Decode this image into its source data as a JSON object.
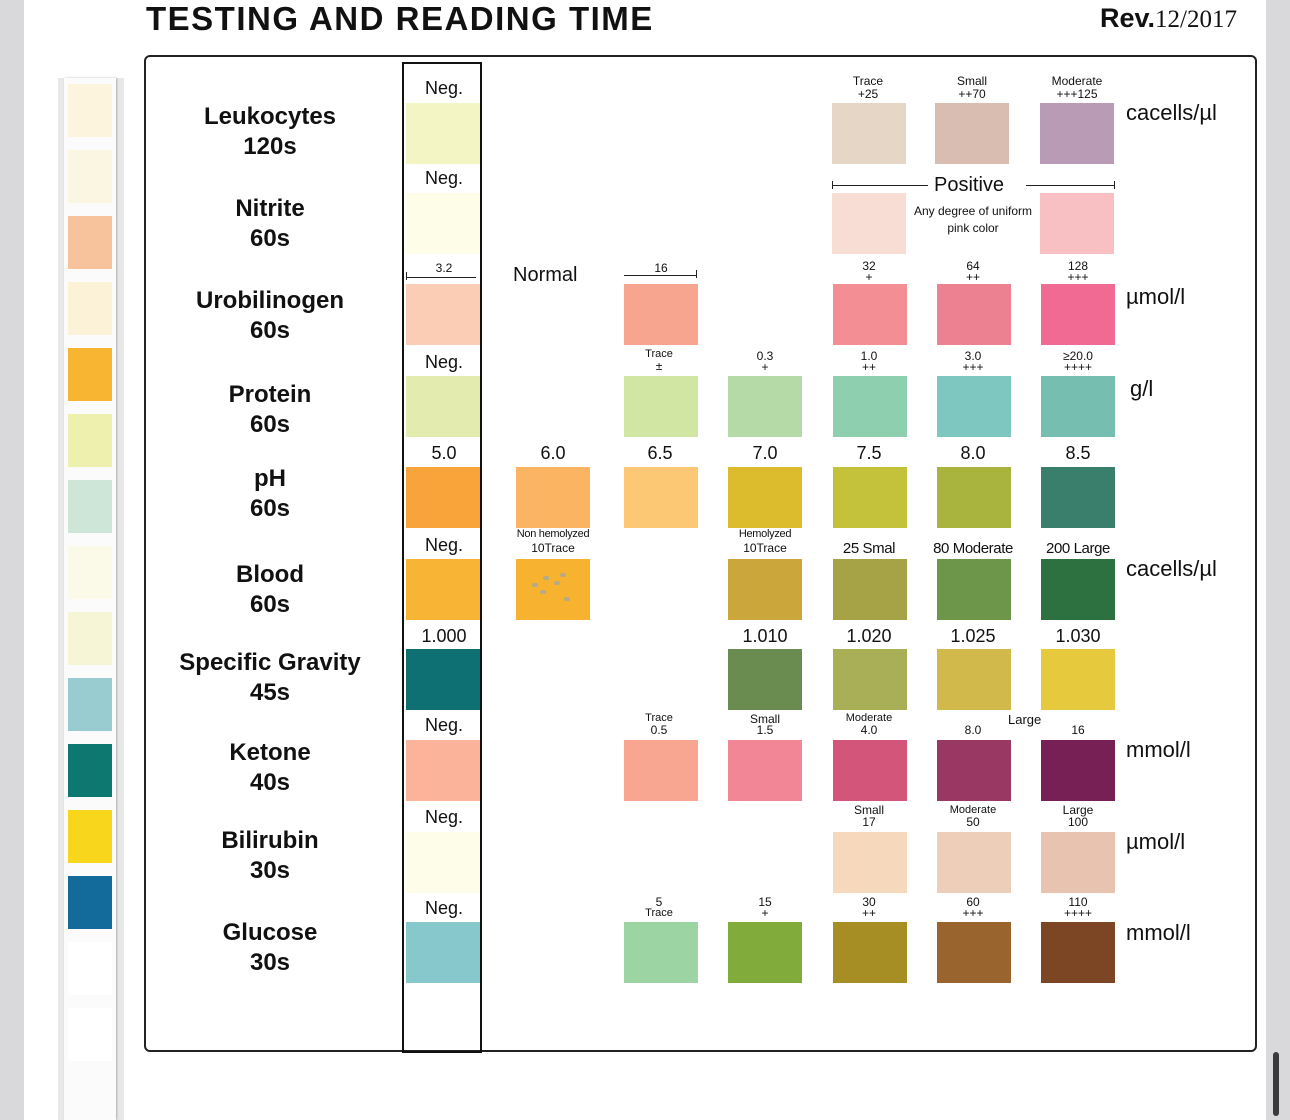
{
  "header": {
    "title": "TESTING AND READING TIME",
    "rev_label": "Rev.",
    "rev_date": "12/2017"
  },
  "strip_colors": [
    "#fdf4de",
    "#fbf6e1",
    "#f7c39c",
    "#fbf2d8",
    "#f7b531",
    "#eef1ae",
    "#cde6d8",
    "#fbfae9",
    "#f6f6d6",
    "#98ccd0",
    "#0c786f",
    "#f7d61c",
    "#136b9b",
    "#ffffff",
    "#ffffff"
  ],
  "rows": [
    {
      "name": "Leukocytes",
      "time": "120s",
      "unit": "cacells/µl"
    },
    {
      "name": "Nitrite",
      "time": "60s",
      "unit": ""
    },
    {
      "name": "Urobilinogen",
      "time": "60s",
      "unit": "µmol/l"
    },
    {
      "name": "Protein",
      "time": "60s",
      "unit": "g/l"
    },
    {
      "name": "pH",
      "time": "60s",
      "unit": ""
    },
    {
      "name": "Blood",
      "time": "60s",
      "unit": "cacells/µl"
    },
    {
      "name": "Specific Gravity",
      "time": "45s",
      "unit": ""
    },
    {
      "name": "Ketone",
      "time": "40s",
      "unit": "mmol/l"
    },
    {
      "name": "Bilirubin",
      "time": "30s",
      "unit": "µmol/l"
    },
    {
      "name": "Glucose",
      "time": "30s",
      "unit": "mmol/l"
    }
  ],
  "swatches": {
    "leukocytes": [
      {
        "color": "#f4f5c4",
        "label": "Neg."
      },
      {
        "color": "#e6d6c6",
        "label1": "Trace",
        "label2": "+25"
      },
      {
        "color": "#d9bdb1",
        "label1": "Small",
        "label2": "++70"
      },
      {
        "color": "#b99bb5",
        "label1": "Moderate",
        "label2": "+++125"
      }
    ],
    "nitrite": [
      {
        "color": "#fdfde8",
        "label": "Neg."
      },
      {
        "color": "#f8ddd4"
      },
      {
        "color": "#f8c0c3"
      }
    ],
    "urobilinogen": [
      {
        "color": "#fbcdb4",
        "label": "3.2"
      },
      {
        "color": "#f8a58f",
        "label": "16"
      },
      {
        "color": "#f38e95",
        "label1": "32",
        "label2": "+"
      },
      {
        "color": "#ec8291",
        "label1": "64",
        "label2": "++"
      },
      {
        "color": "#f06a94",
        "label1": "128",
        "label2": "+++"
      }
    ],
    "protein": [
      {
        "color": "#e4ebae",
        "label": "Neg."
      },
      {
        "color": "#d1e6a3",
        "label1": "Trace",
        "label2": "±"
      },
      {
        "color": "#b5d9a7",
        "label1": "0.3",
        "label2": "+"
      },
      {
        "color": "#8ecfb0",
        "label1": "1.0",
        "label2": "++"
      },
      {
        "color": "#7ec6c0",
        "label1": "3.0",
        "label2": "+++"
      },
      {
        "color": "#76beaf",
        "label1": "≥20.0",
        "label2": "++++"
      }
    ],
    "ph": [
      {
        "color": "#f9a33b",
        "label": "5.0"
      },
      {
        "color": "#fbb462",
        "label": "6.0"
      },
      {
        "color": "#fcc873",
        "label": "6.5"
      },
      {
        "color": "#dcbc2c",
        "label": "7.0"
      },
      {
        "color": "#c4c13a",
        "label": "7.5"
      },
      {
        "color": "#a8b43e",
        "label": "8.0"
      },
      {
        "color": "#3a7e6c",
        "label": "8.5"
      }
    ],
    "blood": [
      {
        "color": "#f8b435",
        "label": "Neg."
      },
      {
        "color": "#f7b230",
        "label1": "Non hemolyzed",
        "label2": "10Trace"
      },
      {
        "color": "#cba73b",
        "label1": "Hemolyzed",
        "label2": "10Trace"
      },
      {
        "color": "#a5a345",
        "label": "25 Smal"
      },
      {
        "color": "#6d964a",
        "label": "80 Moderate"
      },
      {
        "color": "#2d7141",
        "label": "200 Large"
      }
    ],
    "specific_gravity": [
      {
        "color": "#0f7073",
        "label": "1.000"
      },
      {
        "color": "#6a8c50",
        "label": "1.010"
      },
      {
        "color": "#a9af56",
        "label": "1.020"
      },
      {
        "color": "#d2b94c",
        "label": "1.025"
      },
      {
        "color": "#e7c93d",
        "label": "1.030"
      }
    ],
    "ketone": [
      {
        "color": "#fbb49a",
        "label": "Neg."
      },
      {
        "color": "#f8a591",
        "label1": "Trace",
        "label2": "0.5"
      },
      {
        "color": "#f28596",
        "label1": "Small",
        "label2": "1.5"
      },
      {
        "color": "#d35579",
        "label1": "Moderate",
        "label2": "4.0"
      },
      {
        "color": "#993863",
        "label": "8.0"
      },
      {
        "color": "#762056",
        "label": "16"
      }
    ],
    "bilirubin": [
      {
        "color": "#fdfdea",
        "label": "Neg."
      },
      {
        "color": "#f6d8bc",
        "label1": "Small",
        "label2": "17"
      },
      {
        "color": "#edcfb9",
        "label1": "Moderate",
        "label2": "50"
      },
      {
        "color": "#e7c3b0",
        "label1": "Large",
        "label2": "100"
      }
    ],
    "glucose": [
      {
        "color": "#86c8cb",
        "label": "Neg."
      },
      {
        "color": "#9cd5a3",
        "label1": "5",
        "label2": "Trace"
      },
      {
        "color": "#81ac3c",
        "label1": "15",
        "label2": "+"
      },
      {
        "color": "#a78e24",
        "label1": "30",
        "label2": "++"
      },
      {
        "color": "#9a642e",
        "label1": "60",
        "label2": "+++"
      },
      {
        "color": "#7c4524",
        "label1": "110",
        "label2": "++++"
      }
    ]
  },
  "annotations": {
    "nitrite_positive": "Positive",
    "nitrite_note": "Any degree of uniform pink color",
    "urobilinogen_normal": "Normal",
    "ketone_large": "Large"
  }
}
